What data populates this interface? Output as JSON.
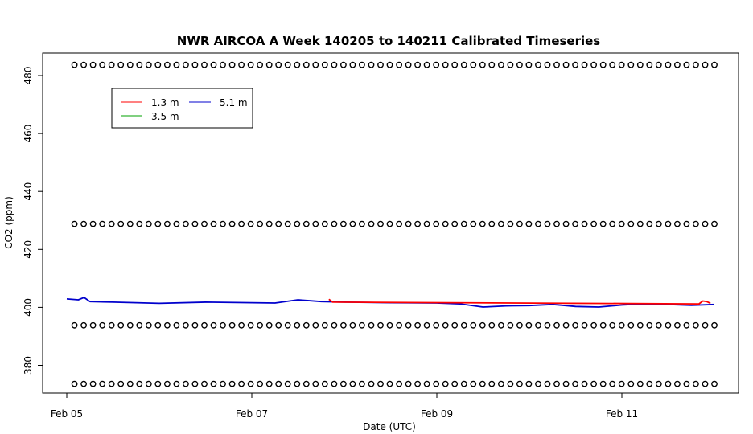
{
  "chart_data": {
    "type": "line",
    "title": "NWR AIRCOA A  Week 140205 to 140211  Calibrated Timeseries",
    "xlabel": "Date (UTC)",
    "ylabel": "CO2 (ppm)",
    "x_range": [
      "2014-02-05",
      "2014-02-12"
    ],
    "ylim": [
      368,
      487
    ],
    "y_ticks": [
      380,
      400,
      420,
      440,
      460,
      480
    ],
    "x_ticks": [
      {
        "label": "Feb 05",
        "date": "2014-02-05"
      },
      {
        "label": "Feb 07",
        "date": "2014-02-07"
      },
      {
        "label": "Feb 09",
        "date": "2014-02-09"
      },
      {
        "label": "Feb 11",
        "date": "2014-02-11"
      }
    ],
    "legend": {
      "placement": "top-left",
      "entries": [
        {
          "label": "1.3 m",
          "color": "#ff0000"
        },
        {
          "label": "3.5 m",
          "color": "#00a000"
        },
        {
          "label": "5.1 m",
          "color": "#0000cc"
        }
      ]
    },
    "series": [
      {
        "name": "5.1 m",
        "color": "#0000cc",
        "points": [
          [
            "2014-02-05T00:00",
            402.9
          ],
          [
            "2014-02-05T03:00",
            402.6
          ],
          [
            "2014-02-05T04:30",
            403.4
          ],
          [
            "2014-02-05T06:00",
            402.0
          ],
          [
            "2014-02-05T12:00",
            401.8
          ],
          [
            "2014-02-06T00:00",
            401.4
          ],
          [
            "2014-02-06T12:00",
            401.8
          ],
          [
            "2014-02-07T00:00",
            401.6
          ],
          [
            "2014-02-07T06:00",
            401.5
          ],
          [
            "2014-02-07T12:00",
            402.6
          ],
          [
            "2014-02-07T18:00",
            402.0
          ],
          [
            "2014-02-08T00:00",
            401.8
          ],
          [
            "2014-02-08T12:00",
            401.6
          ],
          [
            "2014-02-09T00:00",
            401.5
          ],
          [
            "2014-02-09T06:00",
            401.2
          ],
          [
            "2014-02-09T12:00",
            400.1
          ],
          [
            "2014-02-09T18:00",
            400.5
          ],
          [
            "2014-02-10T00:00",
            400.6
          ],
          [
            "2014-02-10T06:00",
            401.0
          ],
          [
            "2014-02-10T12:00",
            400.3
          ],
          [
            "2014-02-10T18:00",
            400.1
          ],
          [
            "2014-02-11T00:00",
            400.8
          ],
          [
            "2014-02-11T06:00",
            401.2
          ],
          [
            "2014-02-11T12:00",
            401.0
          ],
          [
            "2014-02-11T18:00",
            400.7
          ],
          [
            "2014-02-12T00:00",
            401.0
          ]
        ]
      },
      {
        "name": "1.3 m",
        "color": "#ff0000",
        "points": [
          [
            "2014-02-07T20:00",
            402.8
          ],
          [
            "2014-02-07T21:00",
            401.8
          ],
          [
            "2014-02-11T20:00",
            401.2
          ],
          [
            "2014-02-11T21:00",
            402.2
          ],
          [
            "2014-02-11T22:00",
            402.0
          ],
          [
            "2014-02-11T23:00",
            401.4
          ]
        ]
      },
      {
        "name": "3.5 m",
        "color": "#00a000",
        "points": []
      }
    ],
    "reference_rows": {
      "marker": "open-circle",
      "levels": [
        483.7,
        428.8,
        393.8,
        373.6
      ],
      "x_range": [
        "2014-02-05T02:00",
        "2014-02-12T00:00"
      ]
    }
  }
}
